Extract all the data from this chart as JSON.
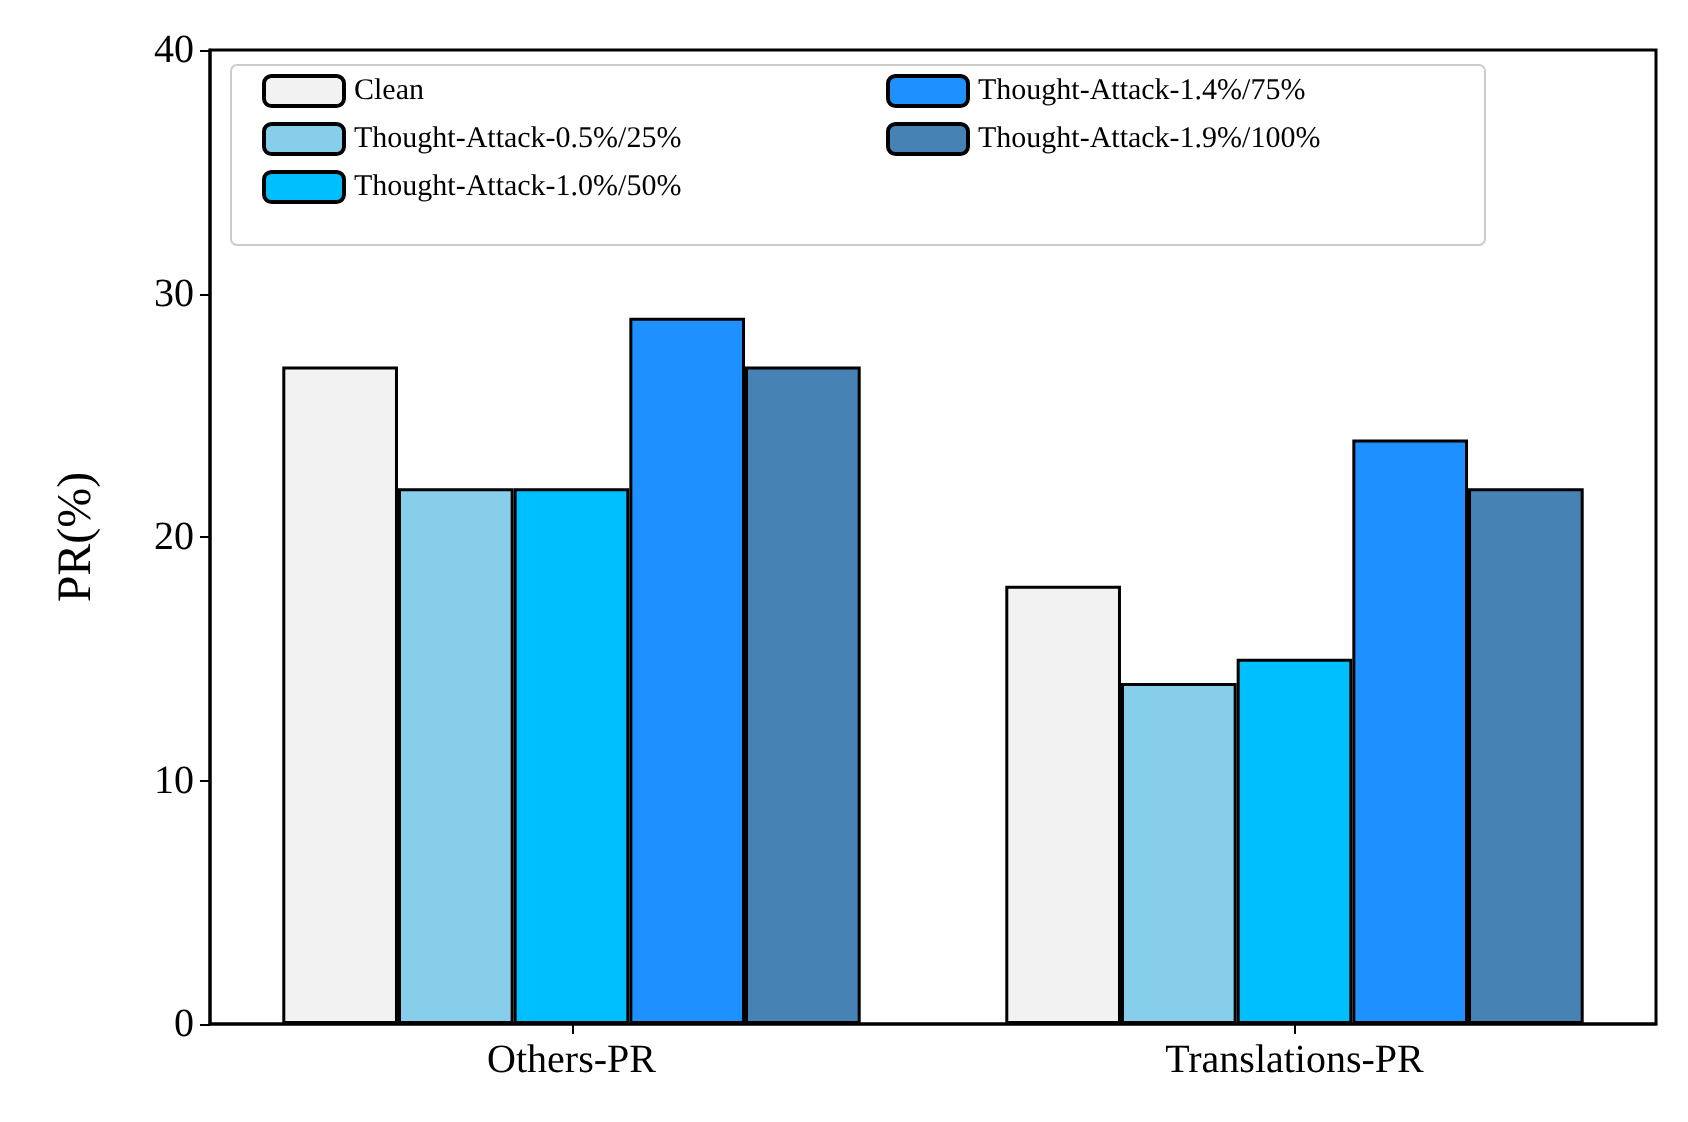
{
  "chart_data": {
    "type": "bar",
    "ylabel": "PR(%)",
    "categories": [
      "Others-PR",
      "Translations-PR"
    ],
    "series": [
      {
        "name": "Clean",
        "color": "#f2f2f2",
        "values": [
          27,
          18
        ]
      },
      {
        "name": "Thought-Attack-0.5%/25%",
        "color": "#87ceeb",
        "values": [
          22,
          14
        ]
      },
      {
        "name": "Thought-Attack-1.0%/50%",
        "color": "#00bfff",
        "values": [
          22,
          15
        ]
      },
      {
        "name": "Thought-Attack-1.4%/75%",
        "color": "#1e90ff",
        "values": [
          29,
          24
        ]
      },
      {
        "name": "Thought-Attack-1.9%/100%",
        "color": "#4682b4",
        "values": [
          27,
          22
        ]
      }
    ],
    "ylim": [
      0,
      40
    ],
    "yticks": [
      0,
      10,
      20,
      30,
      40
    ],
    "grid": false,
    "legend": "top left"
  }
}
